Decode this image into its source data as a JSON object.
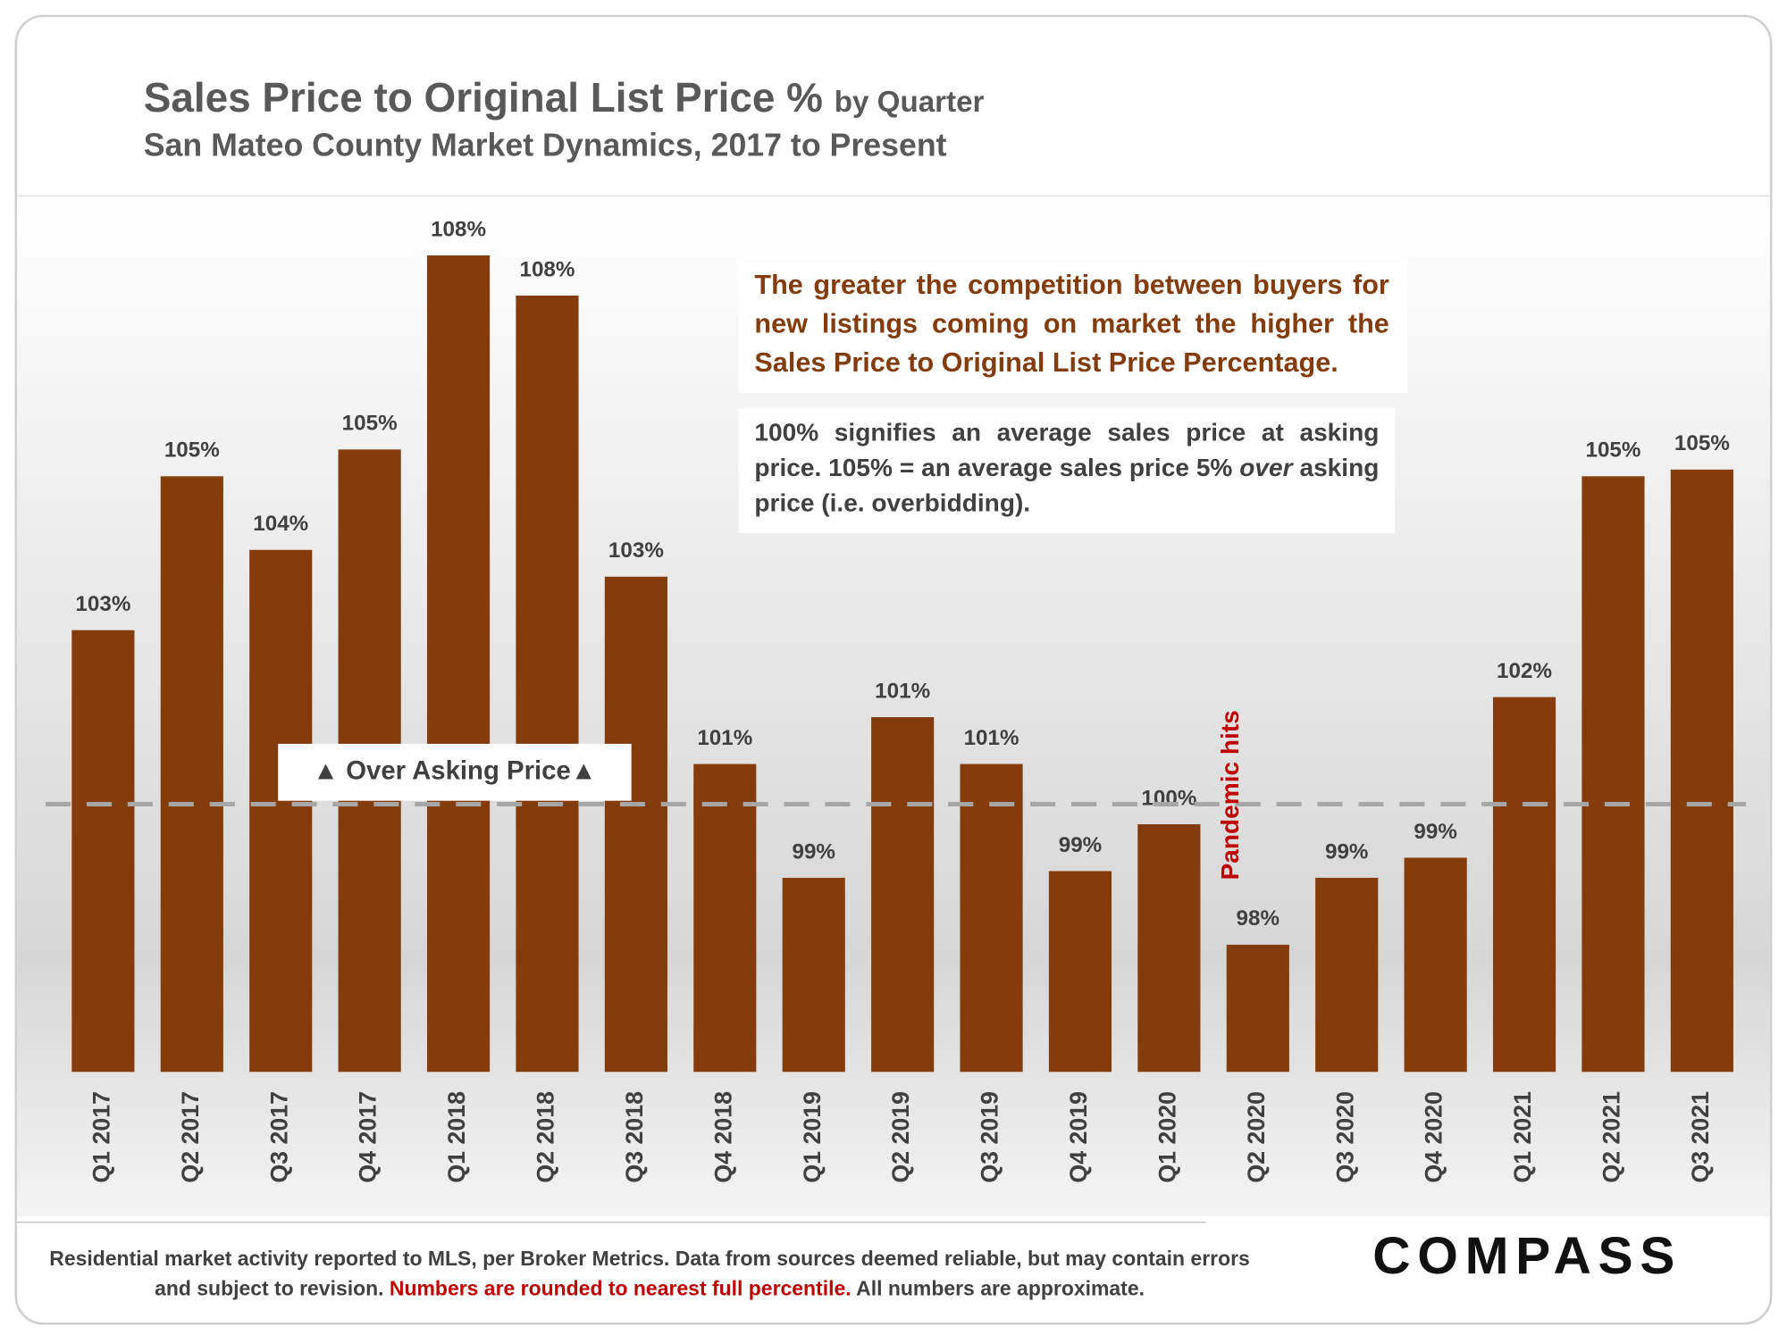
{
  "chart_data": {
    "type": "bar",
    "title": "Sales Price to Original List Price %",
    "title_suffix": "by Quarter",
    "subtitle": "San Mateo County Market Dynamics, 2017 to Present",
    "categories": [
      "Q1 2017",
      "Q2 2017",
      "Q3 2017",
      "Q4 2017",
      "Q1 2018",
      "Q2 2018",
      "Q3 2018",
      "Q4 2018",
      "Q1 2019",
      "Q2 2019",
      "Q3 2019",
      "Q4 2019",
      "Q1 2020",
      "Q2 2020",
      "Q3 2020",
      "Q4 2020",
      "Q1 2021",
      "Q2 2021",
      "Q3 2021"
    ],
    "values": [
      102.6,
      104.9,
      103.8,
      105.3,
      108.2,
      107.6,
      103.4,
      100.6,
      98.9,
      101.3,
      100.6,
      99.0,
      99.7,
      97.9,
      98.9,
      99.2,
      101.6,
      104.9,
      105.0
    ],
    "value_labels": [
      "103%",
      "105%",
      "104%",
      "105%",
      "108%",
      "108%",
      "103%",
      "101%",
      "99%",
      "101%",
      "101%",
      "99%",
      "100%",
      "98%",
      "99%",
      "99%",
      "102%",
      "105%",
      "105%"
    ],
    "color": "#843c0c",
    "ylim": [
      96,
      109
    ],
    "reference_value": 100,
    "reference_label": "▲ Over Asking Price▲",
    "event_label": "Pandemic hits",
    "note_1": "The greater the competition between buyers for new listings coming on market the higher the Sales Price to Original List Price Percentage.",
    "note_2": [
      "100% signifies an average sales price at asking price. 105% = an average sales price 5% ",
      "over",
      " asking price (i.e. overbidding)."
    ],
    "footer": [
      "Residential market activity reported to MLS, per Broker Metrics. Data from sources deemed reliable, but may contain errors and subject to revision. ",
      "Numbers are rounded to nearest full percentile.",
      " All numbers are approximate."
    ],
    "logo": "COMPASS"
  }
}
